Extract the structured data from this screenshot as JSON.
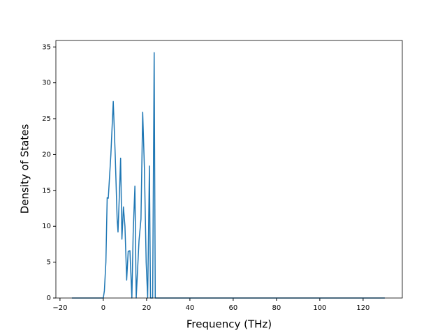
{
  "chart_data": {
    "type": "line",
    "x_label": "Frequency (THz)",
    "y_label": "Density of States",
    "xlim": [
      -21.9,
      138.1
    ],
    "ylim": [
      0,
      35.9
    ],
    "xticks": [
      {
        "value": -20,
        "label": "−20"
      },
      0,
      20,
      40,
      60,
      80,
      100,
      120
    ],
    "yticks": [
      0,
      5,
      10,
      15,
      20,
      25,
      30,
      35
    ],
    "grid": false,
    "x": [
      -14.5,
      0,
      0.5,
      1.2,
      1.8,
      2.3,
      3.5,
      4.6,
      5.5,
      6.4,
      6.8,
      7.5,
      8,
      8.6,
      9.3,
      10,
      10.8,
      11.5,
      12.3,
      13.2,
      13.8,
      14.6,
      15.2,
      16.5,
      17.4,
      18.2,
      19,
      19.8,
      20.5,
      21.3,
      21.8,
      22.8,
      23.5,
      24,
      130
    ],
    "series": [
      {
        "color": "#1f77b4",
        "values": [
          0,
          0,
          1,
          5,
          14,
          13.9,
          20,
          27.4,
          20,
          11,
          9.2,
          15,
          19.5,
          8.2,
          12.7,
          10,
          2.5,
          6.5,
          6.6,
          0,
          9,
          15.6,
          0,
          8,
          11,
          25.9,
          18,
          5,
          0,
          18.4,
          0,
          0,
          34.2,
          0,
          0
        ]
      }
    ]
  }
}
